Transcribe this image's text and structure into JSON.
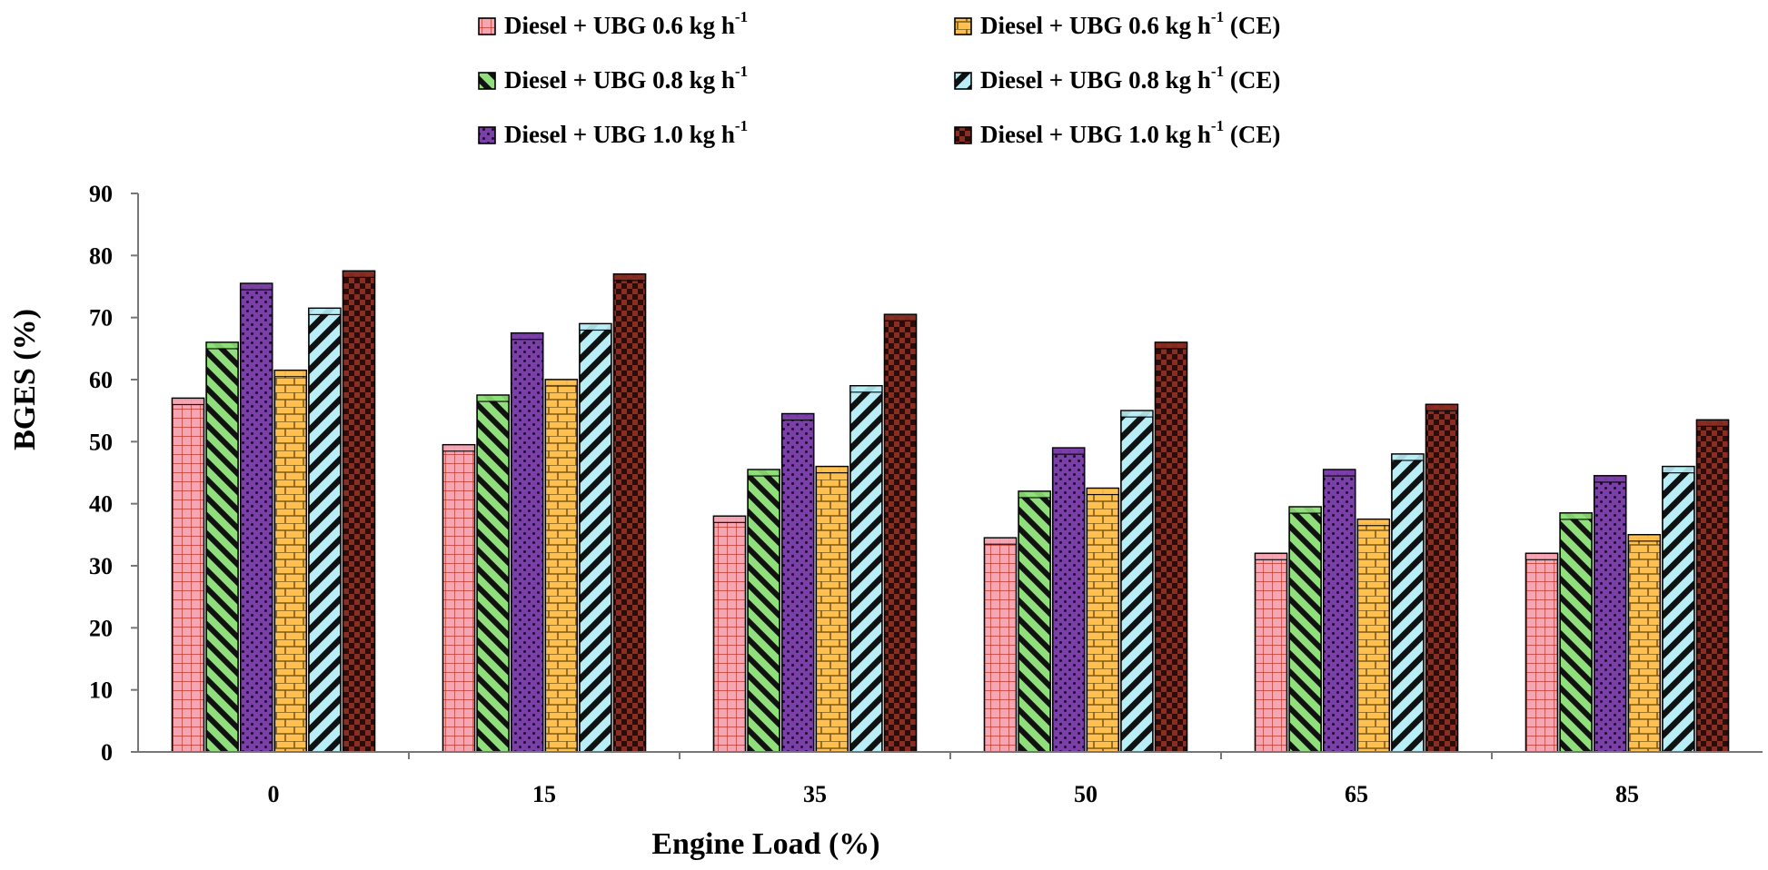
{
  "chart_data": {
    "type": "bar",
    "title": "",
    "xlabel": "Engine Load (%)",
    "ylabel": "BGES (%)",
    "categories": [
      "0",
      "15",
      "35",
      "50",
      "65",
      "85"
    ],
    "ylim": [
      0,
      90
    ],
    "yticks": [
      "0",
      "10",
      "20",
      "30",
      "40",
      "50",
      "60",
      "70",
      "80",
      "90"
    ],
    "legend_position": "top",
    "series": [
      {
        "name": "Diesel + UBG 0.6 kg h-1",
        "label_main": "Diesel + UBG 0.6 kg h",
        "label_sup": "-1",
        "label_suffix": "",
        "pattern": "grid",
        "color": "#f4a6b4",
        "values": [
          57,
          49.5,
          38,
          34.5,
          32,
          32
        ]
      },
      {
        "name": "Diesel + UBG 0.8 kg h-1",
        "label_main": "Diesel + UBG 0.8 kg h",
        "label_sup": "-1",
        "label_suffix": "",
        "pattern": "diagonal",
        "color": "#8fe07a",
        "values": [
          66,
          57.5,
          45.5,
          42,
          39.5,
          38.5
        ]
      },
      {
        "name": "Diesel + UBG 1.0 kg h-1",
        "label_main": "Diesel + UBG 1.0 kg h",
        "label_sup": "-1",
        "label_suffix": "",
        "pattern": "dots",
        "color": "#7b3fa8",
        "values": [
          75.5,
          67.5,
          54.5,
          49,
          45.5,
          44.5
        ]
      },
      {
        "name": "Diesel + UBG 0.6 kg h-1 (CE)",
        "label_main": "Diesel + UBG 0.6 kg h",
        "label_sup": "-1",
        "label_suffix": " (CE)",
        "pattern": "brick",
        "color": "#ffc04d",
        "values": [
          61.5,
          60,
          46,
          42.5,
          37.5,
          35
        ]
      },
      {
        "name": "Diesel + UBG 0.8 kg h-1 (CE)",
        "label_main": "Diesel + UBG 0.8 kg h",
        "label_sup": "-1",
        "label_suffix": " (CE)",
        "pattern": "wide-diagonal",
        "color": "#b9eef7",
        "values": [
          71.5,
          69,
          59,
          55,
          48,
          46
        ]
      },
      {
        "name": "Diesel + UBG 1.0 kg h-1 (CE)",
        "label_main": "Diesel + UBG 1.0 kg h",
        "label_sup": "-1",
        "label_suffix": " (CE)",
        "pattern": "checker",
        "color": "#8b2e22",
        "values": [
          77.5,
          77,
          70.5,
          66,
          56,
          53.5
        ]
      }
    ]
  }
}
